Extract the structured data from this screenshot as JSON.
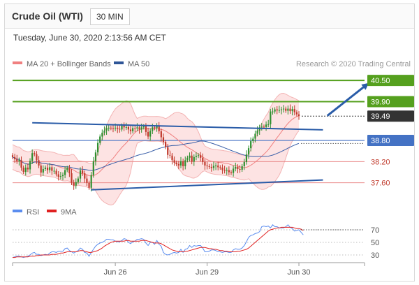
{
  "header": {
    "title": "Crude Oil (WTI)",
    "timeframe": "30 MIN",
    "datetime": "Tuesday, June 30, 2020 2:13:56 AM CET"
  },
  "legend": {
    "ma20_bb": "MA 20 + Bollinger Bands",
    "ma50": "MA 50",
    "credit": "Research © 2020 Trading Central"
  },
  "rsi_legend": {
    "rsi": "RSI",
    "ma9": "9MA"
  },
  "colors": {
    "bull": "#2f8f2f",
    "bear": "#c0392b",
    "resistance": "#55a01e",
    "pivot": "#4472c4",
    "support": "#e05050",
    "arrow": "#2a5ca8",
    "bollinger": "#fcd9d9",
    "ma50": "#3a5fa8",
    "current": "#333333"
  },
  "chart_data": [
    {
      "type": "candlestick",
      "title": "Crude Oil (WTI)",
      "ylim": [
        37.0,
        40.8
      ],
      "x_ticks": [
        {
          "label": "Jun 26",
          "index": 47
        },
        {
          "label": "Jun 29",
          "index": 89
        },
        {
          "label": "Jun 30",
          "index": 131
        }
      ],
      "closes": [
        38.33,
        38.27,
        38.21,
        38.24,
        38.03,
        37.91,
        38.03,
        37.98,
        38.22,
        38.44,
        38.41,
        38.24,
        38.09,
        37.89,
        37.99,
        38.03,
        37.96,
        38.04,
        37.94,
        37.94,
        37.84,
        37.77,
        37.79,
        37.82,
        37.96,
        38.02,
        37.87,
        37.61,
        37.52,
        37.62,
        37.72,
        37.95,
        37.87,
        37.72,
        37.6,
        37.46,
        37.82,
        38.21,
        38.46,
        38.73,
        38.91,
        39.02,
        39.08,
        39.15,
        39.16,
        39.15,
        39.14,
        39.16,
        39.13,
        39.11,
        39.22,
        39.17,
        39.18,
        39.11,
        39.06,
        39.15,
        39.14,
        39.17,
        39.11,
        39.17,
        39.2,
        39.04,
        38.91,
        39.07,
        39.17,
        39.15,
        39.2,
        39.06,
        38.89,
        38.76,
        38.61,
        38.39,
        38.37,
        38.24,
        38.17,
        38.13,
        38.09,
        38.21,
        38.07,
        38.24,
        38.31,
        38.37,
        38.2,
        38.33,
        38.36,
        38.38,
        38.31,
        38.19,
        38.09,
        38.07,
        38.05,
        38.02,
        38.08,
        38.09,
        38.04,
        38.03,
        37.96,
        37.94,
        37.96,
        37.9,
        37.88,
        38.0,
        38.05,
        37.99,
        37.97,
        38.07,
        38.19,
        38.4,
        38.58,
        38.78,
        38.85,
        38.99,
        39.08,
        39.17,
        39.19,
        39.18,
        39.25,
        39.26,
        39.62,
        39.62,
        39.68,
        39.65,
        39.66,
        39.68,
        39.7,
        39.64,
        39.7,
        39.63,
        39.69,
        39.6,
        39.54,
        39.49
      ],
      "series": [
        {
          "name": "MA 20 + Bollinger Bands",
          "values": []
        },
        {
          "name": "MA 50",
          "values": []
        }
      ],
      "levels": [
        {
          "value": 40.5,
          "label": "40.50",
          "kind": "resistance"
        },
        {
          "value": 39.9,
          "label": "39.90",
          "kind": "resistance"
        },
        {
          "value": 39.49,
          "label": "39.49",
          "kind": "current"
        },
        {
          "value": 38.8,
          "label": "38.80",
          "kind": "pivot"
        },
        {
          "value": 38.2,
          "label": "38.20",
          "kind": "support"
        },
        {
          "value": 37.6,
          "label": "37.60",
          "kind": "support"
        }
      ],
      "trendlines": [
        {
          "name": "upper-trendline",
          "from": [
            9,
            39.3
          ],
          "to": [
            142,
            39.1
          ]
        },
        {
          "name": "lower-trendline",
          "from": [
            36,
            37.4
          ],
          "to": [
            142,
            37.68
          ]
        },
        {
          "name": "target-arrow",
          "from": [
            144,
            39.5
          ],
          "to": [
            162,
            40.38
          ]
        }
      ]
    },
    {
      "type": "line",
      "title": "RSI",
      "ylim": [
        20,
        80
      ],
      "y_ticks": [
        70,
        50,
        30
      ],
      "series": [
        {
          "name": "RSI",
          "values": [
            26,
            27,
            28,
            28,
            27,
            26,
            27,
            28,
            30,
            33,
            34,
            31,
            31,
            29,
            30,
            31,
            30,
            33,
            35,
            35,
            34,
            36,
            36,
            36,
            40,
            41,
            37,
            35,
            33,
            35,
            37,
            41,
            39,
            34,
            33,
            28,
            34,
            39,
            44,
            47,
            49,
            50,
            52,
            55,
            55,
            54,
            54,
            52,
            51,
            51,
            53,
            56,
            55,
            50,
            48,
            51,
            52,
            55,
            55,
            56,
            55,
            49,
            45,
            50,
            50,
            47,
            53,
            47,
            44,
            34,
            31,
            30,
            31,
            33,
            34,
            33,
            34,
            39,
            34,
            39,
            40,
            45,
            42,
            45,
            44,
            45,
            45,
            41,
            35,
            35,
            36,
            38,
            38,
            37,
            35,
            35,
            34,
            35,
            35,
            34,
            34,
            38,
            40,
            39,
            39,
            41,
            45,
            51,
            58,
            61,
            62,
            64,
            65,
            67,
            75,
            76,
            75,
            76,
            73,
            78,
            75,
            75,
            73,
            73,
            73,
            75,
            78,
            74,
            72,
            68,
            69,
            70,
            66,
            62
          ]
        },
        {
          "name": "9MA",
          "values": [
            26,
            26,
            27,
            27,
            27,
            27,
            27,
            27,
            28,
            28,
            28,
            29,
            29,
            30,
            30,
            30,
            30,
            30,
            31,
            31,
            31,
            32,
            33,
            33,
            34,
            35,
            35,
            35,
            35,
            35,
            36,
            37,
            37,
            36,
            35,
            34,
            34,
            35,
            36,
            37,
            39,
            41,
            44,
            46,
            48,
            50,
            51,
            52,
            52,
            52,
            52,
            52,
            53,
            53,
            52,
            52,
            52,
            52,
            52,
            53,
            53,
            53,
            52,
            51,
            50,
            49,
            49,
            49,
            48,
            46,
            44,
            42,
            40,
            38,
            37,
            36,
            35,
            35,
            35,
            36,
            36,
            37,
            38,
            39,
            40,
            41,
            42,
            42,
            42,
            41,
            40,
            40,
            39,
            39,
            38,
            37,
            37,
            36,
            36,
            35,
            35,
            35,
            35,
            36,
            36,
            37,
            38,
            39,
            41,
            44,
            47,
            50,
            53,
            56,
            59,
            62,
            65,
            68,
            70,
            71,
            72,
            73,
            73,
            74,
            74,
            74,
            74,
            74,
            74,
            73,
            72,
            72,
            71,
            69
          ]
        }
      ]
    }
  ]
}
